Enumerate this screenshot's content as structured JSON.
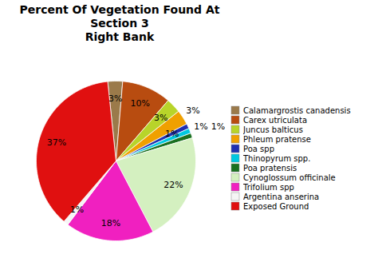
{
  "chart_data": {
    "type": "pie",
    "title": "Percent Of Vegetation Found At Section 3\nRight Bank",
    "categories": [
      "Calamargrostis canadensis",
      "Carex utriculata",
      "Juncus balticus",
      "Phleum pratense",
      "Poa spp",
      "Thinopyrum spp.",
      "Poa pratensis",
      "Cynoglossum officinale",
      "Trifolium spp",
      "Argentina anserina",
      "Exposed Ground"
    ],
    "values": [
      3,
      10,
      3,
      3,
      1,
      1,
      1,
      22,
      18,
      1,
      37
    ],
    "value_labels": [
      "3%",
      "10%",
      "3%",
      "3%",
      "1%",
      "1%",
      "1%",
      "22%",
      "18%",
      "1%",
      "37%"
    ],
    "colors": [
      "#9b7a4a",
      "#b84c10",
      "#b8d42a",
      "#f0a000",
      "#2030b0",
      "#00c8e0",
      "#1a7020",
      "#d4f0c0",
      "#f020c0",
      "#f5f5f5",
      "#e01010"
    ],
    "data_labels": true,
    "legend": "right"
  }
}
